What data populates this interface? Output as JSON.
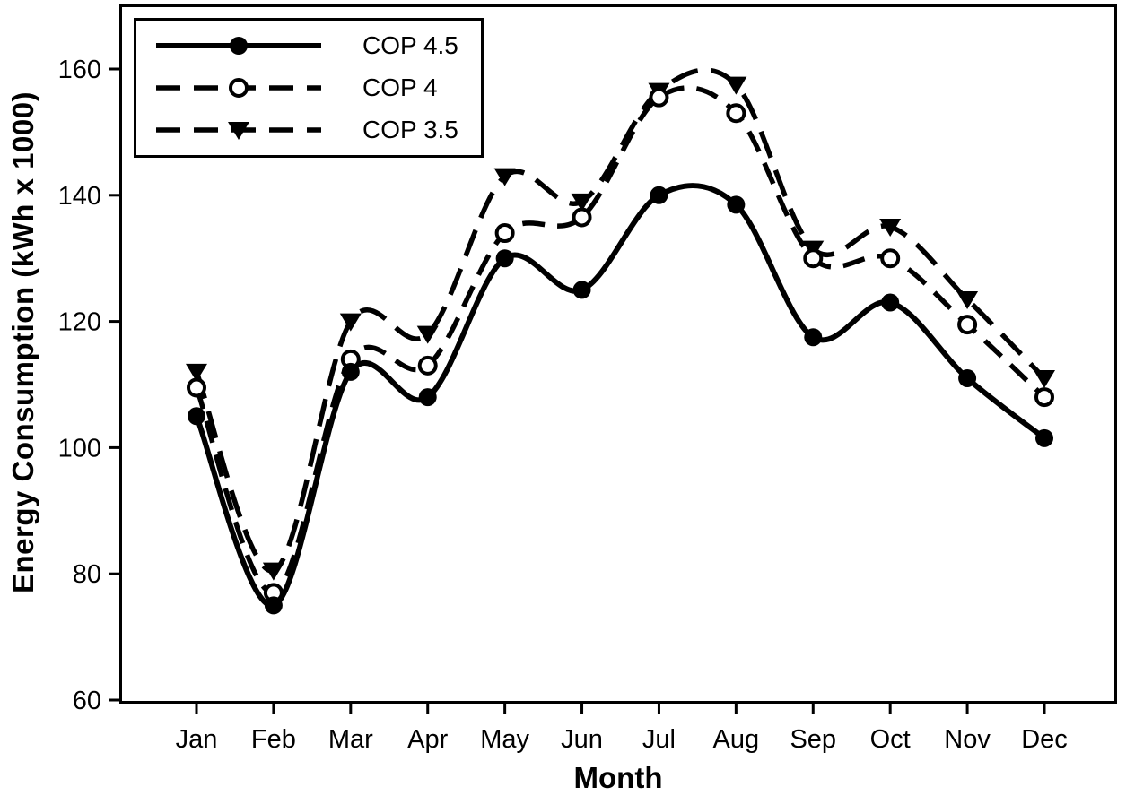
{
  "chart_data": {
    "type": "line",
    "title": "",
    "xlabel": "Month",
    "ylabel": "Energy Consumption (kWh x 1000)",
    "categories": [
      "Jan",
      "Feb",
      "Mar",
      "Apr",
      "May",
      "Jun",
      "Jul",
      "Aug",
      "Sep",
      "Oct",
      "Nov",
      "Dec"
    ],
    "y_ticks": [
      60,
      80,
      100,
      120,
      140,
      160
    ],
    "ylim": [
      60,
      170
    ],
    "grid": false,
    "legend_position": "top-left",
    "background_color": "#ffffff",
    "foreground_color": "#000000",
    "series": [
      {
        "name": "COP 4.5",
        "line_style": "solid",
        "marker": "filled-circle",
        "values": [
          105,
          75,
          112,
          108,
          130,
          125,
          140,
          138.5,
          117.5,
          123,
          111,
          101.5
        ]
      },
      {
        "name": "COP 4",
        "line_style": "dashed",
        "marker": "open-circle",
        "values": [
          109.5,
          77,
          114,
          113,
          134,
          136.5,
          155.5,
          153,
          130,
          130,
          119.5,
          108
        ]
      },
      {
        "name": "COP 3.5",
        "line_style": "long-dashed",
        "marker": "filled-triangle-down",
        "values": [
          112,
          80.5,
          120,
          118,
          143,
          139,
          156.5,
          157.5,
          131.5,
          135,
          123.5,
          111
        ]
      }
    ]
  }
}
